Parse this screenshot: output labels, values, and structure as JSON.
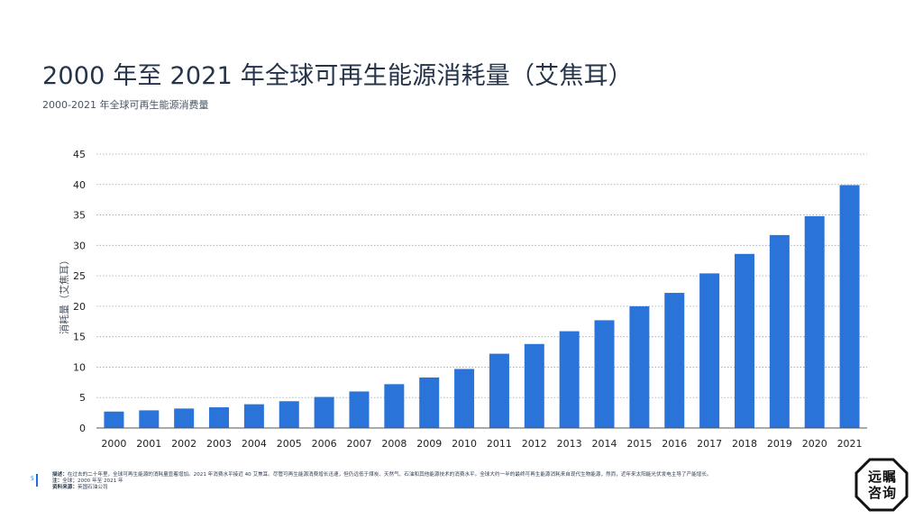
{
  "title": "2000 年至 2021 年全球可再生能源消耗量（艾焦耳）",
  "subtitle": "2000-2021 年全球可再生能源消费量",
  "footer": {
    "page": "5",
    "desc_label": "描述：",
    "desc": "在过去的二十年里，全球可再生能源的消耗量显着增加。2021 年消费水平接近 40 艾焦耳。尽管可再生能源消费增长迅速，但仍远低于煤炭、天然气、石油和其他能源技术的消费水平。全球大约一半的最终可再生能源消耗来自现代生物能源，然而，近年来太阳能光伏发电主导了产能增长。",
    "note_label": "注：",
    "note": "全球；2000 年至 2021 年",
    "source_label": "资料来源：",
    "source": "英国石油公司"
  },
  "logo": {
    "line1": "远瞩",
    "line2": "咨询"
  },
  "colors": {
    "bar": "#2a74d9",
    "grid": "#9aa3ad",
    "accent": "#1a6fd8"
  },
  "chart_data": {
    "type": "bar",
    "categories": [
      "2000",
      "2001",
      "2002",
      "2003",
      "2004",
      "2005",
      "2006",
      "2007",
      "2008",
      "2009",
      "2010",
      "2011",
      "2012",
      "2013",
      "2014",
      "2015",
      "2016",
      "2017",
      "2018",
      "2019",
      "2020",
      "2021"
    ],
    "values": [
      2.7,
      2.9,
      3.2,
      3.4,
      3.9,
      4.4,
      5.1,
      6.0,
      7.2,
      8.3,
      9.7,
      12.2,
      13.8,
      15.9,
      17.7,
      20.0,
      22.2,
      25.4,
      28.6,
      31.7,
      34.8,
      39.9
    ],
    "ylabel": "消耗量（艾焦耳）",
    "xlabel": "",
    "ylim": [
      0,
      45
    ],
    "yticks": [
      0,
      5,
      10,
      15,
      20,
      25,
      30,
      35,
      40,
      45
    ],
    "grid": true,
    "legend": "none"
  }
}
